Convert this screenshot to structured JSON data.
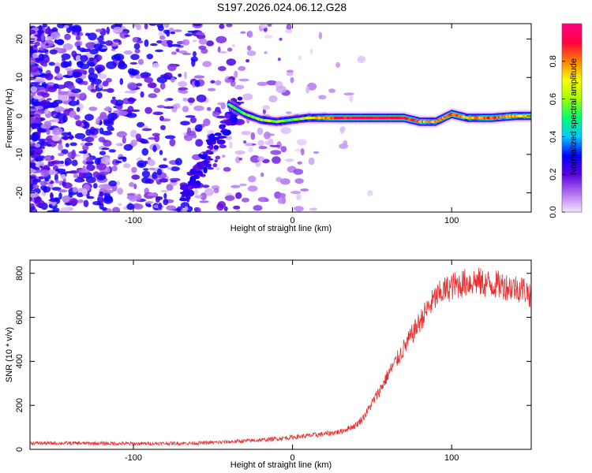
{
  "chart_data": [
    {
      "type": "heatmap",
      "title": "S197.2026.024.06.12.G28",
      "xlabel": "Height of straight line (km)",
      "ylabel": "Frequency (Hz)",
      "xlim": [
        -165,
        150
      ],
      "ylim": [
        -25,
        24
      ],
      "x_ticks": [
        -100,
        0,
        100
      ],
      "y_ticks": [
        -20,
        -10,
        0,
        10,
        20
      ],
      "colorbar": {
        "label": "Normalized spectral amplitude",
        "range": [
          0,
          1
        ],
        "ticks": [
          "0.0",
          "0.2",
          "0.4",
          "0.6",
          "0.8"
        ],
        "colors": [
          "#f2e6ff",
          "#b070f0",
          "#5a00e0",
          "#0000ff",
          "#00c8ff",
          "#00ff70",
          "#a0ff00",
          "#ffff00",
          "#ff8000",
          "#ff0040",
          "#ff0080"
        ]
      },
      "ridge": [
        {
          "x": -40,
          "y": 3,
          "amp": 0.5
        },
        {
          "x": -30,
          "y": 0.5,
          "amp": 0.55
        },
        {
          "x": -20,
          "y": -1,
          "amp": 0.6
        },
        {
          "x": -10,
          "y": -1.5,
          "amp": 0.6
        },
        {
          "x": 0,
          "y": -1,
          "amp": 0.55
        },
        {
          "x": 10,
          "y": -0.5,
          "amp": 0.65
        },
        {
          "x": 30,
          "y": -0.5,
          "amp": 0.9
        },
        {
          "x": 50,
          "y": -0.5,
          "amp": 0.95
        },
        {
          "x": 70,
          "y": -0.5,
          "amp": 0.9
        },
        {
          "x": 80,
          "y": -1.5,
          "amp": 0.8
        },
        {
          "x": 90,
          "y": -1.5,
          "amp": 0.75
        },
        {
          "x": 100,
          "y": 0.5,
          "amp": 0.9
        },
        {
          "x": 110,
          "y": -0.5,
          "amp": 0.7
        },
        {
          "x": 125,
          "y": -0.5,
          "amp": 0.85
        },
        {
          "x": 140,
          "y": 0,
          "amp": 0.75
        },
        {
          "x": 150,
          "y": 0,
          "amp": 0.7
        }
      ]
    },
    {
      "type": "line",
      "xlabel": "Height of straight line (km)",
      "ylabel": "SNR (10 * v/v)",
      "xlim": [
        -165,
        150
      ],
      "ylim": [
        0,
        860
      ],
      "x_ticks": [
        -100,
        0,
        100
      ],
      "y_ticks": [
        0,
        200,
        400,
        600,
        800
      ],
      "color": "#e83030",
      "x": [
        -165,
        -140,
        -120,
        -100,
        -80,
        -60,
        -40,
        -20,
        0,
        10,
        20,
        30,
        40,
        45,
        50,
        55,
        60,
        65,
        70,
        75,
        80,
        85,
        90,
        95,
        100,
        105,
        110,
        115,
        120,
        125,
        130,
        135,
        140,
        145,
        150
      ],
      "values": [
        28,
        28,
        27,
        26,
        27,
        28,
        34,
        42,
        55,
        62,
        70,
        80,
        110,
        150,
        210,
        270,
        340,
        400,
        460,
        520,
        580,
        640,
        690,
        720,
        740,
        750,
        760,
        765,
        755,
        750,
        748,
        740,
        735,
        730,
        700
      ]
    }
  ]
}
